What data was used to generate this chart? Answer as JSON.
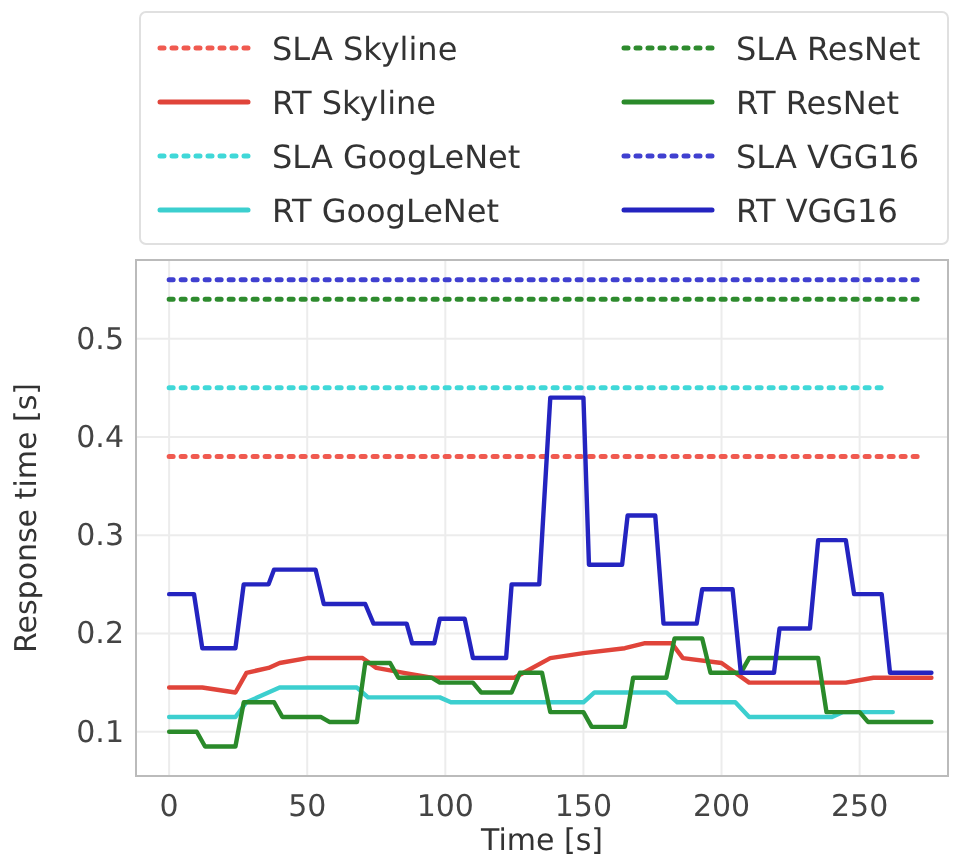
{
  "chart_data": {
    "type": "line",
    "xlabel": "Time [s]",
    "ylabel": "Response time [s]",
    "xlim": [
      -12,
      282
    ],
    "ylim": [
      0.055,
      0.58
    ],
    "xticks": [
      0,
      50,
      100,
      150,
      200,
      250
    ],
    "yticks": [
      0.1,
      0.2,
      0.3,
      0.4,
      0.5
    ],
    "grid": true,
    "legend": "top",
    "line_style": "solid",
    "series": [
      {
        "name": "SLA Skyline",
        "color": "#f05a50",
        "line_style": "dotted",
        "x": [
          0,
          273
        ],
        "values": [
          0.38,
          0.38
        ]
      },
      {
        "name": "RT Skyline",
        "color": "#e0443a",
        "x": [
          0,
          12,
          24,
          28,
          36,
          40,
          50,
          70,
          75,
          85,
          95,
          125,
          138,
          150,
          165,
          172,
          182,
          186,
          200,
          210,
          245,
          255,
          276
        ],
        "values": [
          0.145,
          0.145,
          0.14,
          0.16,
          0.165,
          0.17,
          0.175,
          0.175,
          0.165,
          0.16,
          0.155,
          0.155,
          0.175,
          0.18,
          0.185,
          0.19,
          0.19,
          0.175,
          0.17,
          0.15,
          0.15,
          0.155,
          0.155
        ]
      },
      {
        "name": "SLA GoogLeNet",
        "color": "#40d8d8",
        "line_style": "dotted",
        "x": [
          0,
          260
        ],
        "values": [
          0.45,
          0.45
        ]
      },
      {
        "name": "RT GoogLeNet",
        "color": "#3ccfcf",
        "x": [
          0,
          24,
          28,
          40,
          68,
          72,
          98,
          102,
          150,
          154,
          180,
          184,
          205,
          210,
          240,
          244,
          262
        ],
        "values": [
          0.115,
          0.115,
          0.13,
          0.145,
          0.145,
          0.135,
          0.135,
          0.13,
          0.13,
          0.14,
          0.14,
          0.13,
          0.13,
          0.115,
          0.115,
          0.12,
          0.12
        ]
      },
      {
        "name": "SLA ResNet",
        "color": "#2e8b2e",
        "line_style": "dotted",
        "x": [
          0,
          273
        ],
        "values": [
          0.54,
          0.54
        ]
      },
      {
        "name": "RT ResNet",
        "color": "#2a8a2a",
        "x": [
          0,
          10,
          13,
          24,
          27,
          38,
          41,
          55,
          58,
          68,
          71,
          80,
          83,
          95,
          98,
          110,
          113,
          124,
          127,
          135,
          138,
          150,
          153,
          165,
          168,
          180,
          183,
          193,
          196,
          207,
          210,
          235,
          238,
          250,
          253,
          276
        ],
        "values": [
          0.1,
          0.1,
          0.085,
          0.085,
          0.13,
          0.13,
          0.115,
          0.115,
          0.11,
          0.11,
          0.17,
          0.17,
          0.155,
          0.155,
          0.15,
          0.15,
          0.14,
          0.14,
          0.16,
          0.16,
          0.12,
          0.12,
          0.105,
          0.105,
          0.155,
          0.155,
          0.195,
          0.195,
          0.16,
          0.16,
          0.175,
          0.175,
          0.12,
          0.12,
          0.11,
          0.11
        ]
      },
      {
        "name": "SLA VGG16",
        "color": "#4040d0",
        "line_style": "dotted",
        "x": [
          0,
          273
        ],
        "values": [
          0.56,
          0.56
        ]
      },
      {
        "name": "RT VGG16",
        "color": "#2424c0",
        "x": [
          0,
          9,
          12,
          24,
          27,
          36,
          38,
          53,
          56,
          71,
          74,
          86,
          88,
          96,
          98,
          107,
          110,
          122,
          124,
          134,
          138,
          150,
          152,
          164,
          166,
          176,
          179,
          191,
          193,
          204,
          207,
          219,
          221,
          232,
          235,
          245,
          248,
          258,
          261,
          276
        ],
        "values": [
          0.24,
          0.24,
          0.185,
          0.185,
          0.25,
          0.25,
          0.265,
          0.265,
          0.23,
          0.23,
          0.21,
          0.21,
          0.19,
          0.19,
          0.215,
          0.215,
          0.175,
          0.175,
          0.25,
          0.25,
          0.44,
          0.44,
          0.27,
          0.27,
          0.32,
          0.32,
          0.21,
          0.21,
          0.245,
          0.245,
          0.16,
          0.16,
          0.205,
          0.205,
          0.295,
          0.295,
          0.24,
          0.24,
          0.16,
          0.16
        ]
      }
    ]
  }
}
